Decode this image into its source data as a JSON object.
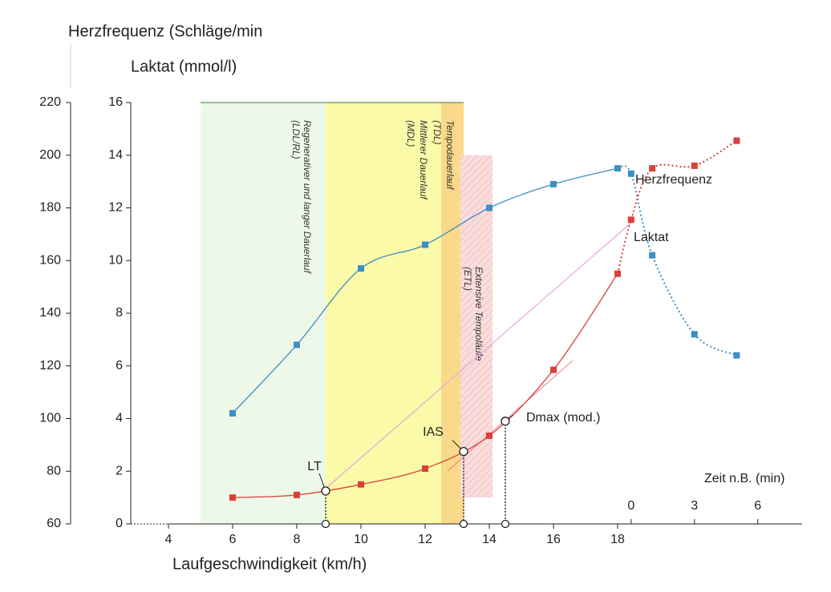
{
  "chart_data": {
    "type": "line",
    "title": "Herzfrequenz (Schläge/min",
    "y_label": "Laktat (mmol/l)",
    "x_label": "Laufgeschwindigkeit (km/h)",
    "recovery_label": "Zeit n.B. (min)",
    "x": [
      6,
      8,
      10,
      12,
      14,
      16,
      18
    ],
    "xlim": [
      2.825,
      23.75
    ],
    "xticks": [
      4,
      6,
      8,
      10,
      12,
      14,
      16,
      18
    ],
    "recovery_x": [
      0,
      1,
      3,
      5
    ],
    "recovery_xlim": [
      -23.7,
      8.1
    ],
    "recovery_xticks": [
      0,
      3,
      6
    ],
    "ylim": [
      0,
      16
    ],
    "yticks": [
      0,
      2,
      4,
      6,
      8,
      10,
      12,
      14,
      16
    ],
    "y2lim": [
      60,
      220
    ],
    "y2ticks": [
      60,
      80,
      100,
      120,
      140,
      160,
      180,
      200,
      220
    ],
    "series": [
      {
        "name": "Herzfrequenz",
        "color": "#3b8fc4",
        "axis": "y2",
        "values": [
          102,
          128,
          157,
          166,
          180,
          189,
          195
        ],
        "recovery_values": [
          193,
          162,
          132,
          124
        ]
      },
      {
        "name": "Laktat",
        "color": "#d9403a",
        "values": [
          1.0,
          1.1,
          1.5,
          2.1,
          3.35,
          5.85,
          9.5
        ],
        "recovery_values": [
          11.55,
          13.5,
          13.6,
          14.55
        ]
      }
    ],
    "zones": [
      {
        "from": 5,
        "to": 8.9,
        "top": 16,
        "bottom": 0,
        "color": "#eef8e8",
        "label": [
          "Regenerativer und langer Dauerlauf",
          "(LDL/RL)"
        ]
      },
      {
        "from": 8.9,
        "to": 12.5,
        "top": 16,
        "bottom": 0,
        "color": "#fafaa8",
        "label": [
          "Mittlerer Dauerlauf",
          "(MDL)"
        ]
      },
      {
        "from": 12.5,
        "to": 13.2,
        "top": 16,
        "bottom": 0,
        "color": "#fbd98a",
        "label": [
          "Tempodauerlauf",
          "(TDL)"
        ]
      },
      {
        "from": 13.1,
        "to": 14.1,
        "top": 14,
        "bottom": 1,
        "color": "#f9dede",
        "label": [
          "Extensive Tempoläufe",
          "(ETL)"
        ]
      }
    ],
    "thresholds": [
      {
        "label": "LT",
        "x": 8.9,
        "value": 1.25
      },
      {
        "label": "IAS",
        "x": 13.2,
        "value": 2.75
      },
      {
        "label": "Dmax (mod.)",
        "x": 14.5,
        "value": 3.9
      }
    ]
  }
}
